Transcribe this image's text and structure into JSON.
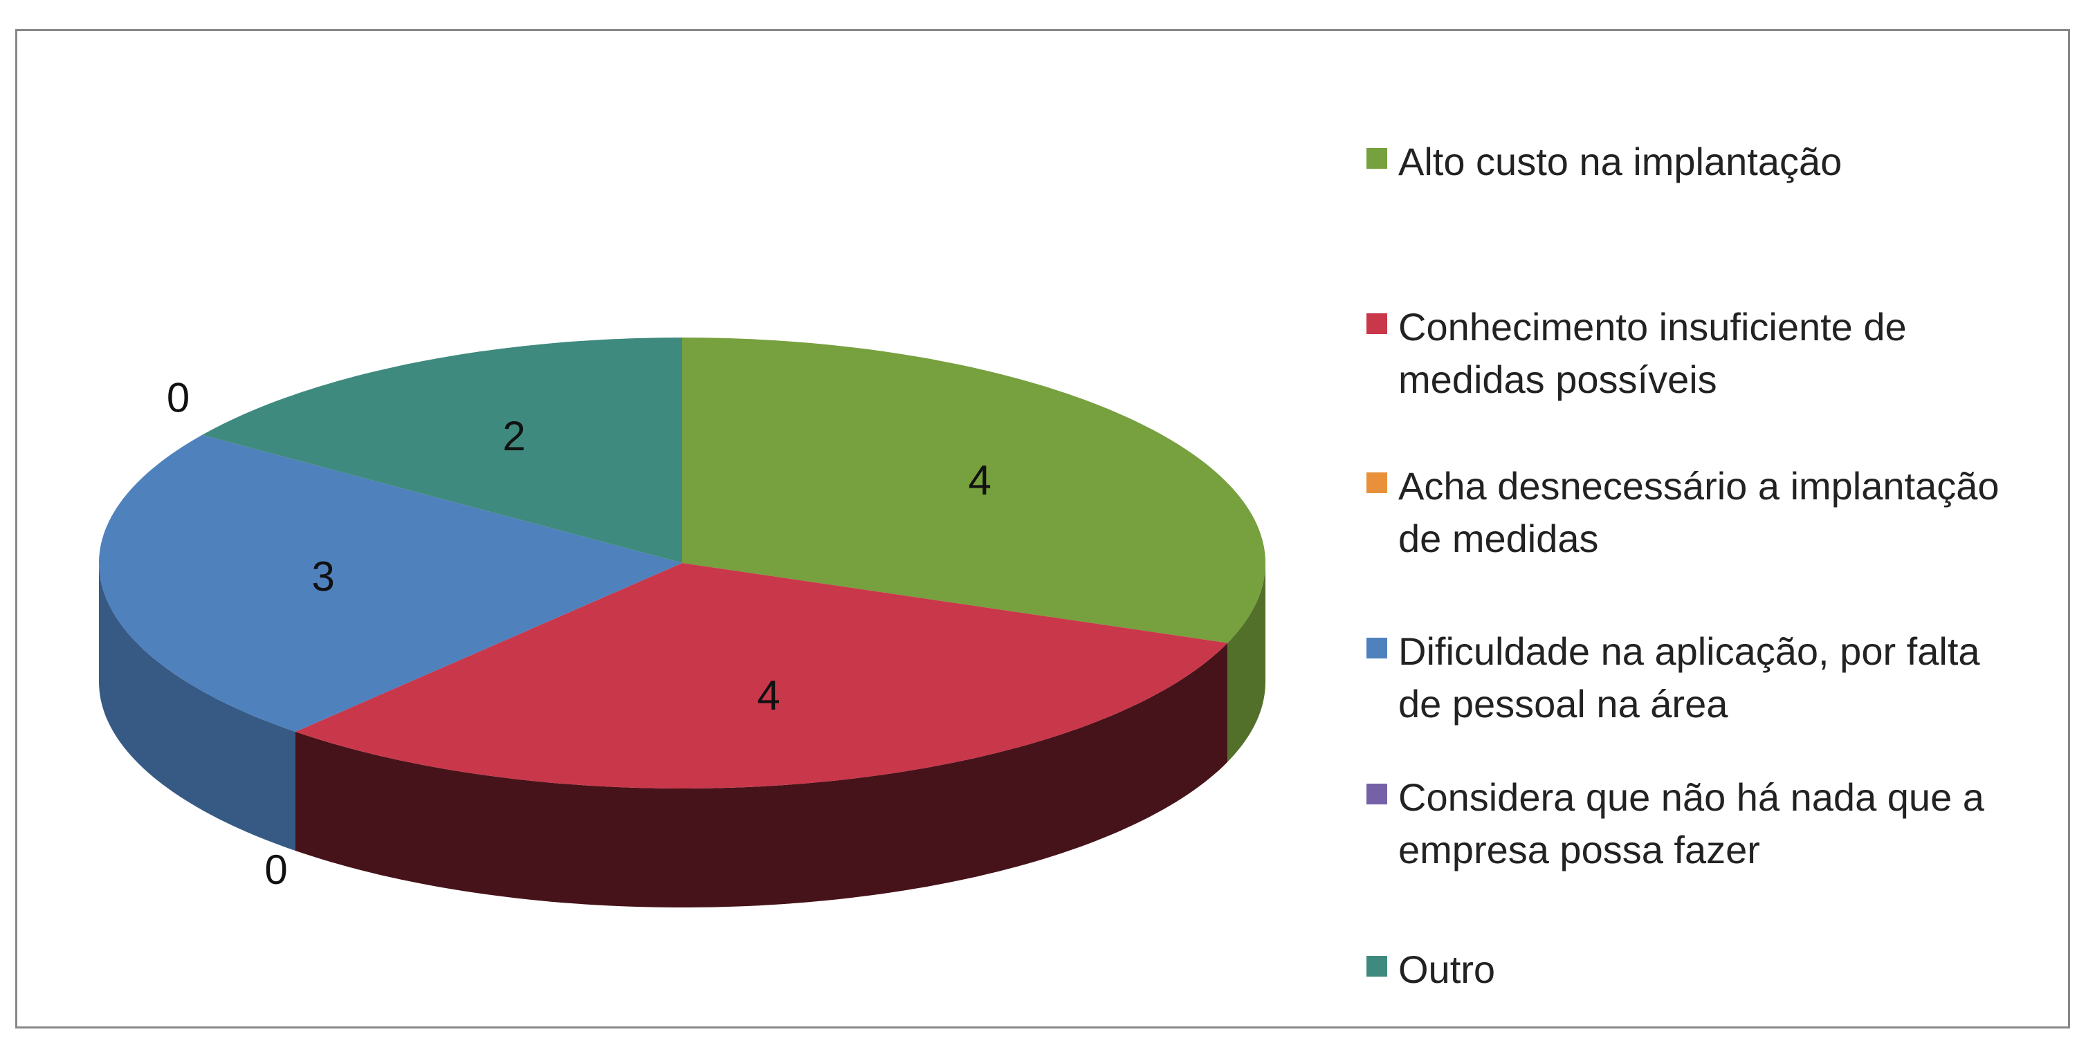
{
  "chart_data": {
    "type": "pie3d",
    "categories": [
      "Alto custo na implantação",
      "Conhecimento insuficiente de medidas possíveis",
      "Acha desnecessário a implantação de medidas",
      "Dificuldade na aplicação, por falta de pessoal na área",
      "Considera que não há nada que a empresa possa fazer",
      "Outro"
    ],
    "values": [
      4,
      4,
      0,
      3,
      0,
      2
    ],
    "colors": [
      "#77a03e",
      "#c9374a",
      "#e8913a",
      "#4f81bd",
      "#7461a8",
      "#3f8a7e"
    ],
    "legend": "right"
  }
}
